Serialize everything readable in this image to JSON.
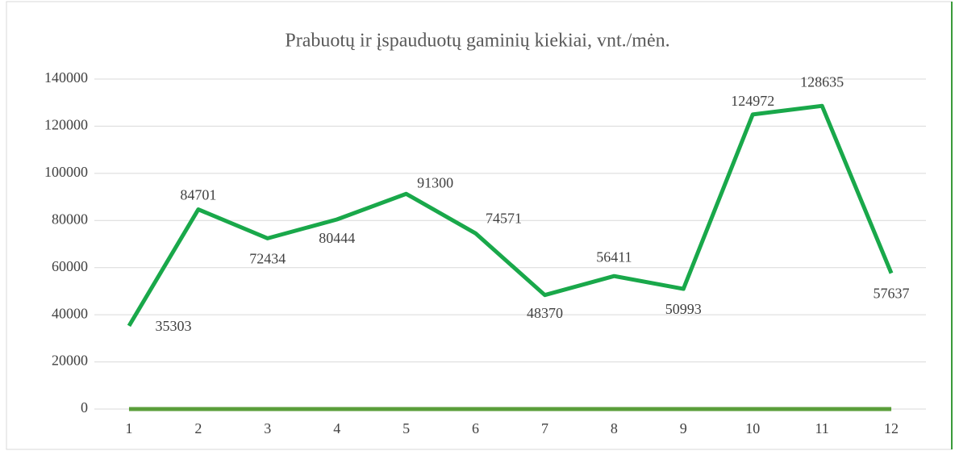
{
  "chart_data": {
    "type": "line",
    "title": "Prabuotų ir įspauduotų gaminių kiekiai, vnt./mėn.",
    "categories": [
      "1",
      "2",
      "3",
      "4",
      "5",
      "6",
      "7",
      "8",
      "9",
      "10",
      "11",
      "12"
    ],
    "series": [
      {
        "color": "#19a84a",
        "values": [
          35303,
          84701,
          72434,
          80444,
          91300,
          74571,
          48370,
          56411,
          50993,
          124972,
          128635,
          57637
        ]
      },
      {
        "color": "#5a9e3a",
        "values": [
          0,
          0,
          0,
          0,
          0,
          0,
          0,
          0,
          0,
          0,
          0,
          0
        ]
      }
    ],
    "data_labels": true,
    "ylim": [
      0,
      140000
    ],
    "yticks": [
      0,
      20000,
      40000,
      60000,
      80000,
      100000,
      120000,
      140000
    ],
    "grid": true
  }
}
